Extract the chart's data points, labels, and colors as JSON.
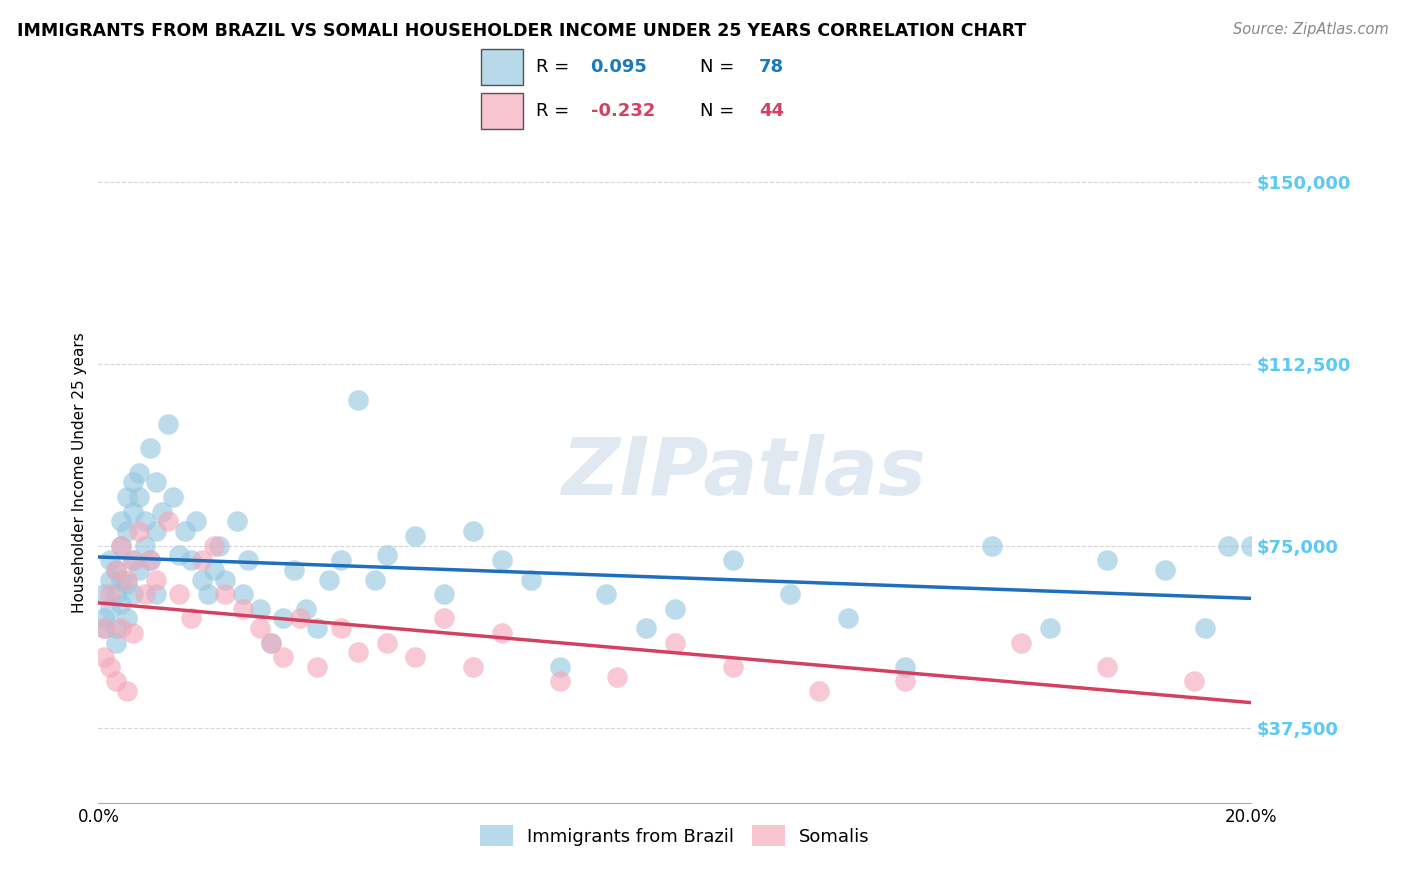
{
  "title": "IMMIGRANTS FROM BRAZIL VS SOMALI HOUSEHOLDER INCOME UNDER 25 YEARS CORRELATION CHART",
  "source": "Source: ZipAtlas.com",
  "ylabel": "Householder Income Under 25 years",
  "xlim": [
    0.0,
    0.2
  ],
  "ylim": [
    22000,
    158000
  ],
  "yticks": [
    37500,
    75000,
    112500,
    150000
  ],
  "ytick_labels": [
    "$37,500",
    "$75,000",
    "$112,500",
    "$150,000"
  ],
  "xticks": [
    0.0,
    0.04,
    0.08,
    0.12,
    0.16,
    0.2
  ],
  "xtick_labels": [
    "0.0%",
    "",
    "",
    "",
    "",
    "20.0%"
  ],
  "brazil_R": 0.095,
  "brazil_N": 78,
  "somali_R": -0.232,
  "somali_N": 44,
  "brazil_color": "#92c5de",
  "somali_color": "#f4a6b8",
  "brazil_line_color": "#1f6fbf",
  "somali_line_color": "#d44060",
  "background_color": "#ffffff",
  "grid_color": "#d5d5d5",
  "brazil_x": [
    0.001,
    0.001,
    0.001,
    0.002,
    0.002,
    0.002,
    0.003,
    0.003,
    0.003,
    0.003,
    0.004,
    0.004,
    0.004,
    0.004,
    0.005,
    0.005,
    0.005,
    0.005,
    0.006,
    0.006,
    0.006,
    0.006,
    0.007,
    0.007,
    0.007,
    0.008,
    0.008,
    0.009,
    0.009,
    0.01,
    0.01,
    0.01,
    0.011,
    0.012,
    0.013,
    0.014,
    0.015,
    0.016,
    0.017,
    0.018,
    0.019,
    0.02,
    0.021,
    0.022,
    0.024,
    0.025,
    0.026,
    0.028,
    0.03,
    0.032,
    0.034,
    0.036,
    0.038,
    0.04,
    0.042,
    0.045,
    0.048,
    0.05,
    0.055,
    0.06,
    0.065,
    0.07,
    0.075,
    0.08,
    0.088,
    0.095,
    0.1,
    0.11,
    0.12,
    0.13,
    0.14,
    0.155,
    0.165,
    0.175,
    0.185,
    0.192,
    0.196,
    0.2
  ],
  "brazil_y": [
    60000,
    65000,
    58000,
    68000,
    72000,
    62000,
    70000,
    65000,
    58000,
    55000,
    75000,
    68000,
    80000,
    63000,
    85000,
    78000,
    67000,
    60000,
    88000,
    82000,
    72000,
    65000,
    90000,
    85000,
    70000,
    80000,
    75000,
    95000,
    72000,
    88000,
    78000,
    65000,
    82000,
    100000,
    85000,
    73000,
    78000,
    72000,
    80000,
    68000,
    65000,
    70000,
    75000,
    68000,
    80000,
    65000,
    72000,
    62000,
    55000,
    60000,
    70000,
    62000,
    58000,
    68000,
    72000,
    105000,
    68000,
    73000,
    77000,
    65000,
    78000,
    72000,
    68000,
    50000,
    65000,
    58000,
    62000,
    72000,
    65000,
    60000,
    50000,
    75000,
    58000,
    72000,
    70000,
    58000,
    75000,
    75000
  ],
  "somali_x": [
    0.001,
    0.001,
    0.002,
    0.002,
    0.003,
    0.003,
    0.004,
    0.004,
    0.005,
    0.005,
    0.006,
    0.006,
    0.007,
    0.008,
    0.009,
    0.01,
    0.012,
    0.014,
    0.016,
    0.018,
    0.02,
    0.022,
    0.025,
    0.028,
    0.03,
    0.032,
    0.035,
    0.038,
    0.042,
    0.045,
    0.05,
    0.055,
    0.06,
    0.065,
    0.07,
    0.08,
    0.09,
    0.1,
    0.11,
    0.125,
    0.14,
    0.16,
    0.175,
    0.19
  ],
  "somali_y": [
    58000,
    52000,
    65000,
    50000,
    70000,
    47000,
    75000,
    58000,
    68000,
    45000,
    72000,
    57000,
    78000,
    65000,
    72000,
    68000,
    80000,
    65000,
    60000,
    72000,
    75000,
    65000,
    62000,
    58000,
    55000,
    52000,
    60000,
    50000,
    58000,
    53000,
    55000,
    52000,
    60000,
    50000,
    57000,
    47000,
    48000,
    55000,
    50000,
    45000,
    47000,
    55000,
    50000,
    47000
  ],
  "watermark": "ZIPatlas",
  "legend_brazil_label": "Immigrants from Brazil",
  "legend_somali_label": "Somalis"
}
